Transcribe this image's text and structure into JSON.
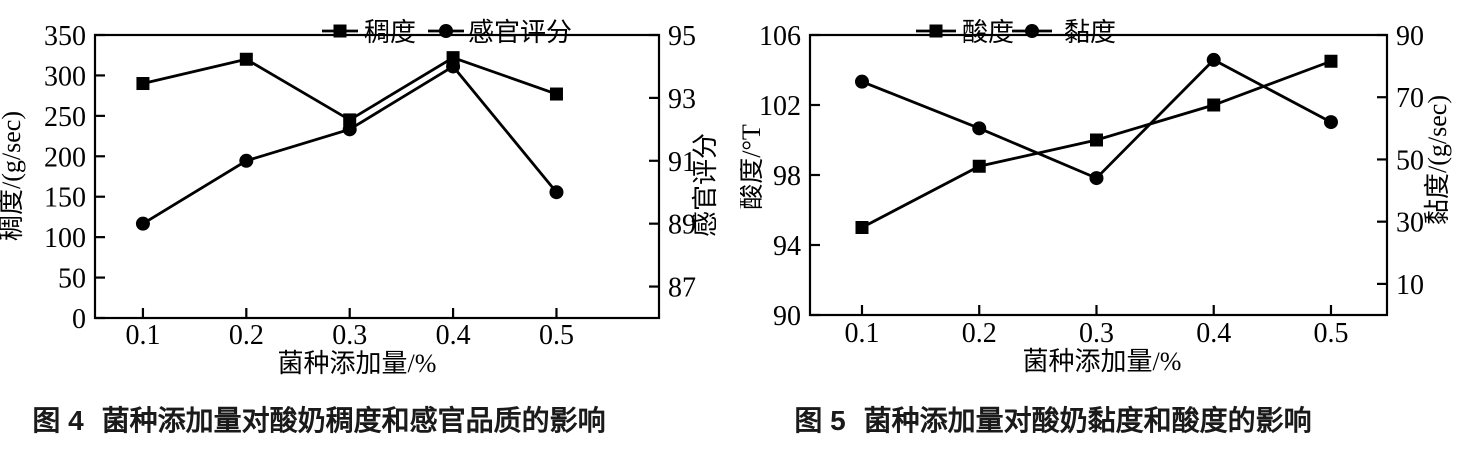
{
  "page": {
    "background": "#ffffff",
    "foreground": "#000000"
  },
  "charts": [
    {
      "id": "fig4",
      "caption_prefix": "图 4",
      "caption_title": "菌种添加量对酸奶稠度和感官品质的影响",
      "chart_data": {
        "type": "line",
        "x": [
          0.1,
          0.2,
          0.3,
          0.4,
          0.5
        ],
        "x_ticks": [
          "0.1",
          "0.2",
          "0.3",
          "0.4",
          "0.5"
        ],
        "xlabel": "菌种添加量/%",
        "grid": false,
        "legend_position": "top",
        "color": "#000000",
        "left_axis": {
          "label": "稠度/(g/sec)",
          "ticks": [
            0,
            50,
            100,
            150,
            200,
            250,
            300,
            350
          ],
          "range": [
            0,
            350
          ]
        },
        "right_axis": {
          "label": "感官评分",
          "ticks": [
            87,
            89,
            91,
            93,
            95
          ],
          "range": [
            86,
            95
          ]
        },
        "series": [
          {
            "name": "稠度",
            "axis": "left",
            "marker": "square",
            "values": [
              290,
              320,
              245,
              322,
              277
            ]
          },
          {
            "name": "感官评分",
            "axis": "right",
            "marker": "circle",
            "values": [
              89,
              91,
              92,
              94,
              90
            ]
          }
        ]
      }
    },
    {
      "id": "fig5",
      "caption_prefix": "图 5",
      "caption_title": "菌种添加量对酸奶黏度和酸度的影响",
      "chart_data": {
        "type": "line",
        "x": [
          0.1,
          0.2,
          0.3,
          0.4,
          0.5
        ],
        "x_ticks": [
          "0.1",
          "0.2",
          "0.3",
          "0.4",
          "0.5"
        ],
        "xlabel": "菌种添加量/%",
        "grid": false,
        "legend_position": "top",
        "color": "#000000",
        "left_axis": {
          "label": "酸度/°T",
          "ticks": [
            90,
            94,
            98,
            102,
            106
          ],
          "range": [
            90,
            106
          ]
        },
        "right_axis": {
          "label": "黏度/(g/sec)",
          "ticks": [
            10,
            30,
            50,
            70,
            90
          ],
          "range": [
            0,
            90
          ]
        },
        "series": [
          {
            "name": "酸度",
            "axis": "left",
            "marker": "square",
            "values": [
              95,
              98.5,
              100,
              102,
              104.5
            ]
          },
          {
            "name": "黏度",
            "axis": "right",
            "marker": "circle",
            "values": [
              75,
              60,
              44,
              82,
              62
            ]
          }
        ]
      }
    }
  ]
}
